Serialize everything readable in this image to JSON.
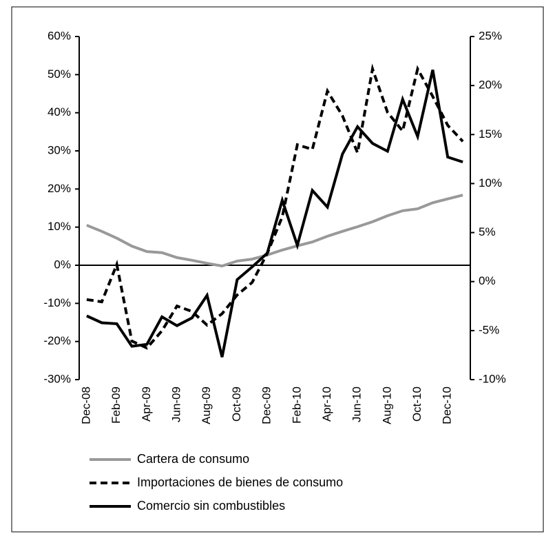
{
  "chart_data": {
    "type": "line",
    "categories": [
      "Dec-08",
      null,
      "Feb-09",
      null,
      "Apr-09",
      null,
      "Jun-09",
      null,
      "Aug-09",
      null,
      "Oct-09",
      null,
      "Dec-09",
      null,
      "Feb-10",
      null,
      "Apr-10",
      null,
      "Jun-10",
      null,
      "Aug-10",
      null,
      "Oct-10",
      null,
      "Dec-10",
      null
    ],
    "series": [
      {
        "name": "Cartera de consumo",
        "color": "#999999",
        "dash": "solid",
        "axis": "y",
        "values": [
          10.5,
          8.9,
          7.1,
          5.0,
          3.6,
          3.3,
          2.0,
          1.3,
          0.5,
          -0.2,
          1.1,
          1.6,
          2.7,
          4.0,
          5.1,
          6.1,
          7.6,
          8.9,
          10.1,
          11.4,
          13.0,
          14.3,
          14.8,
          16.4,
          17.4,
          18.4
        ]
      },
      {
        "name": "Importaciones de bienes de consumo",
        "color": "#000000",
        "dash": "dashed",
        "axis": "y",
        "values": [
          -9.0,
          -9.6,
          0.2,
          -19.9,
          -21.7,
          -17.2,
          -10.7,
          -12.1,
          -15.7,
          -12.7,
          -7.8,
          -4.5,
          3.1,
          12.7,
          31.6,
          30.4,
          45.7,
          39.2,
          29.5,
          51.5,
          40.1,
          35.2,
          51.5,
          44.3,
          36.7,
          32.5
        ]
      },
      {
        "name": "Comercio sin combustibles",
        "color": "#000000",
        "dash": "solid",
        "axis": "y2",
        "values": [
          -3.5,
          -4.2,
          -4.3,
          -6.6,
          -6.4,
          -3.6,
          -4.5,
          -3.7,
          -1.4,
          -7.7,
          0.2,
          1.5,
          2.9,
          8.3,
          3.7,
          9.3,
          7.6,
          13.0,
          15.8,
          14.1,
          13.3,
          18.6,
          14.8,
          21.6,
          12.7,
          12.2
        ]
      }
    ],
    "ylim": [
      -30,
      60
    ],
    "yticks": [
      {
        "value": -30,
        "label": "-30%"
      },
      {
        "value": -20,
        "label": "-20%"
      },
      {
        "value": -10,
        "label": "-10%"
      },
      {
        "value": 0,
        "label": "0%"
      },
      {
        "value": 10,
        "label": "10%"
      },
      {
        "value": 20,
        "label": "20%"
      },
      {
        "value": 30,
        "label": "30%"
      },
      {
        "value": 40,
        "label": "40%"
      },
      {
        "value": 50,
        "label": "50%"
      },
      {
        "value": 60,
        "label": "60%"
      }
    ],
    "y2lim": [
      -10,
      25
    ],
    "y2ticks": [
      {
        "value": -10,
        "label": "-10%"
      },
      {
        "value": -5,
        "label": "-5%"
      },
      {
        "value": 0,
        "label": "0%"
      },
      {
        "value": 5,
        "label": "5%"
      },
      {
        "value": 10,
        "label": "10%"
      },
      {
        "value": 15,
        "label": "15%"
      },
      {
        "value": 20,
        "label": "20%"
      },
      {
        "value": 25,
        "label": "25%"
      }
    ],
    "grid": false,
    "legend": "bottom"
  }
}
